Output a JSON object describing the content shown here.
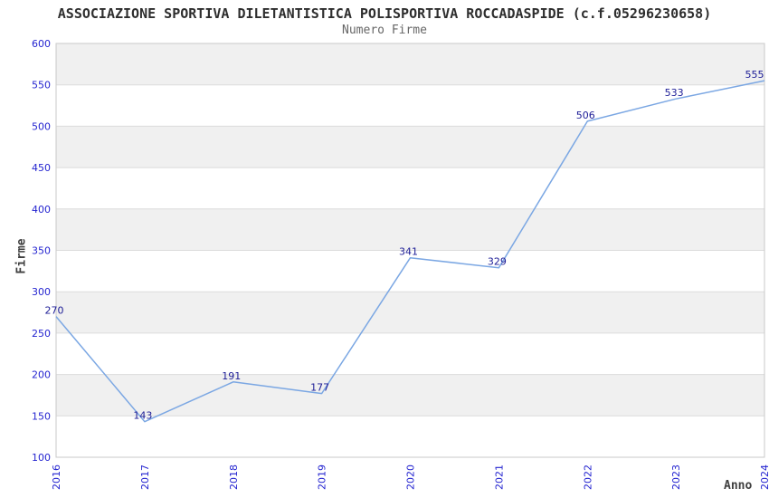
{
  "chart_data": {
    "type": "line",
    "title": "ASSOCIAZIONE SPORTIVA DILETANTISTICA POLISPORTIVA ROCCADASPIDE (c.f.05296230658)",
    "subtitle": "Numero Firme",
    "xlabel": "Anno",
    "ylabel": "Firme",
    "x": [
      2016,
      2017,
      2018,
      2019,
      2020,
      2021,
      2022,
      2023,
      2024
    ],
    "values": [
      270,
      143,
      191,
      177,
      341,
      329,
      506,
      533,
      555
    ],
    "point_labels": [
      "270",
      "143",
      "191",
      "177",
      "341",
      "329",
      "506",
      "533",
      "555"
    ],
    "x_tick_labels": [
      "2016",
      "2017",
      "2018",
      "2019",
      "2020",
      "2021",
      "2022",
      "2023",
      "2024"
    ],
    "y_tick_labels": [
      "100",
      "150",
      "200",
      "250",
      "300",
      "350",
      "400",
      "450",
      "500",
      "550",
      "600"
    ],
    "ylim": [
      100,
      600
    ],
    "ytick_step": 50,
    "grid": "horizontal-bands",
    "legend": "none",
    "colors": {
      "line": "#7ba7e3",
      "tick_label": "#2424d0",
      "point_label": "#1c1c96",
      "band": "#f0f0f0",
      "gridline": "#dcdcdc",
      "plot_border": "#c9c9c9",
      "title": "#2e2e2e",
      "subtitle": "#666666",
      "axis_title": "#3f3f3f"
    }
  }
}
